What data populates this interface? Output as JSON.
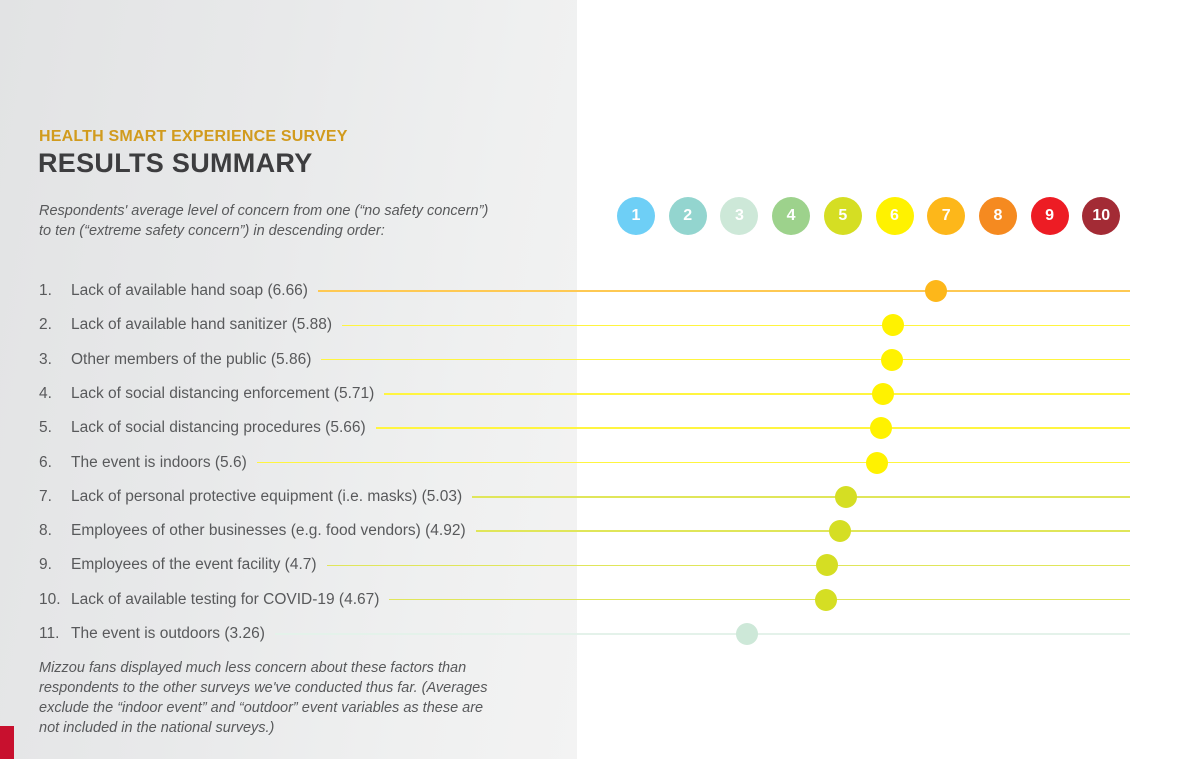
{
  "header": {
    "kicker": "HEALTH SMART EXPERIENCE SURVEY",
    "title": "RESULTS SUMMARY",
    "intro_line1": "Respondents' average level of concern from one (“no safety concern”)",
    "intro_line2": "to ten (“extreme safety concern”) in descending order:"
  },
  "footnote": {
    "line1": "Mizzou fans displayed much less concern about these factors than",
    "line2": "respondents to the other surveys we've conducted thus far. (Averages",
    "line3": "exclude the “indoor event” and “outdoor” event variables as these are",
    "line4": "not included in the national surveys.)"
  },
  "colors": {
    "kicker": "#d19b1e",
    "title": "#3d3d3f",
    "text": "#58595b",
    "accent_bar": "#c8102e"
  },
  "chart_data": {
    "type": "scatter",
    "title": "Respondents' average level of concern (1 = no safety concern, 10 = extreme safety concern)",
    "xlabel": "",
    "ylabel": "",
    "xlim": [
      1,
      10
    ],
    "scale": {
      "labels": [
        "1",
        "2",
        "3",
        "4",
        "5",
        "6",
        "7",
        "8",
        "9",
        "10"
      ],
      "colors": [
        "#6ecff6",
        "#93d5cf",
        "#cde8d8",
        "#9dd28c",
        "#d5de23",
        "#fff200",
        "#fdb71a",
        "#f58a20",
        "#ed1c24",
        "#a32b35"
      ]
    },
    "items": [
      {
        "rank": "1.",
        "label": "Lack of available hand soap (6.66)",
        "value": 6.66
      },
      {
        "rank": "2.",
        "label": "Lack of available hand sanitizer (5.88)",
        "value": 5.88
      },
      {
        "rank": "3.",
        "label": "Other members of the public (5.86)",
        "value": 5.86
      },
      {
        "rank": "4.",
        "label": "Lack of social distancing enforcement (5.71)",
        "value": 5.71
      },
      {
        "rank": "5.",
        "label": "Lack of social distancing procedures (5.66)",
        "value": 5.66
      },
      {
        "rank": "6.",
        "label": "The event is indoors (5.6)",
        "value": 5.6
      },
      {
        "rank": "7.",
        "label": "Lack of personal protective equipment (i.e. masks) (5.03)",
        "value": 5.03
      },
      {
        "rank": "8.",
        "label": "Employees of other businesses (e.g. food vendors) (4.92)",
        "value": 4.92
      },
      {
        "rank": "9.",
        "label": "Employees of the event facility (4.7)",
        "value": 4.7
      },
      {
        "rank": "10.",
        "label": "Lack of available testing for COVID-19 (4.67)",
        "value": 4.67
      },
      {
        "rank": "11.",
        "label": "The event is outdoors (3.26)",
        "value": 3.26
      }
    ]
  }
}
